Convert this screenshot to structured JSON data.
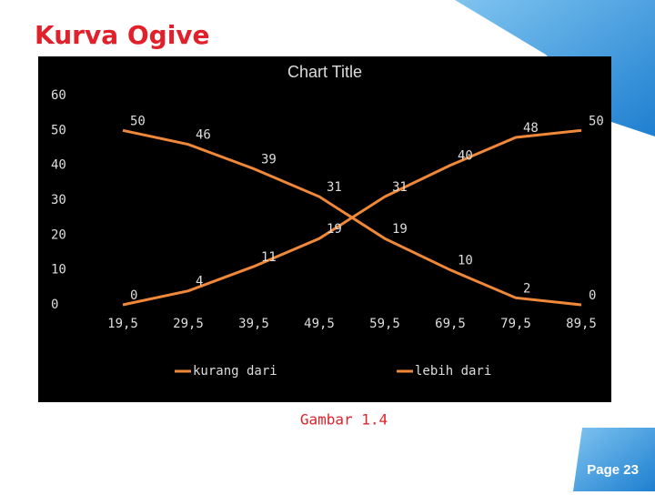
{
  "header": {
    "title": "Kurva Ogive"
  },
  "chart_data": {
    "type": "line",
    "title": "Chart Title",
    "categories": [
      "19,5",
      "29,5",
      "39,5",
      "49,5",
      "59,5",
      "69,5",
      "79,5",
      "89,5"
    ],
    "series": [
      {
        "name": "kurang dari",
        "color": "#f0883a",
        "values": [
          0,
          4,
          11,
          19,
          31,
          40,
          48,
          50
        ]
      },
      {
        "name": "lebih dari",
        "color": "#f0883a",
        "values": [
          50,
          46,
          39,
          31,
          19,
          10,
          2,
          0
        ]
      }
    ],
    "ylim": [
      0,
      60
    ],
    "yticks": [
      0,
      10,
      20,
      30,
      40,
      50,
      60
    ],
    "grid": false,
    "legend": "bottom"
  },
  "caption": "Gambar 1.4",
  "footer": {
    "page": "Page 23"
  }
}
